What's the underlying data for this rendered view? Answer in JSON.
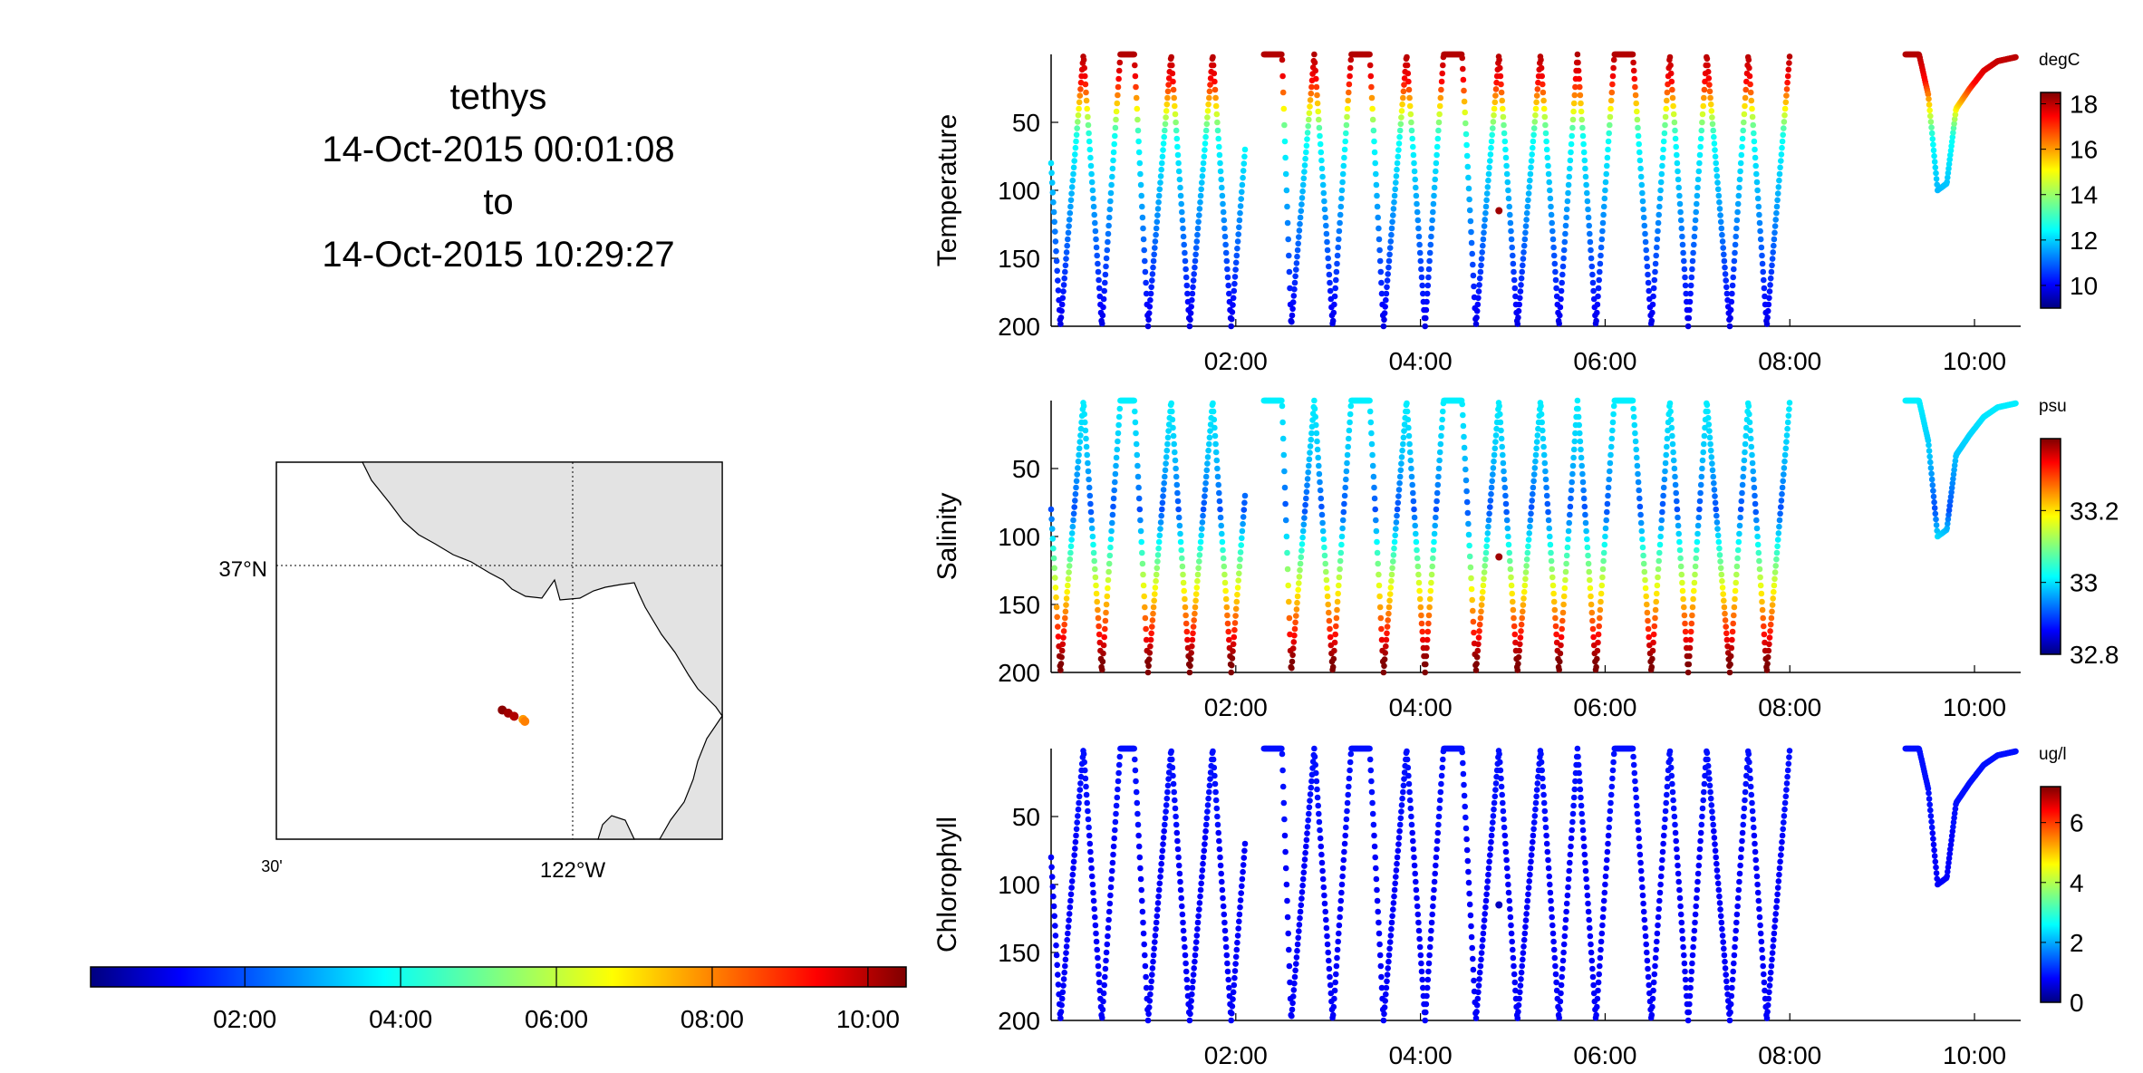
{
  "header": {
    "vehicle": "tethys",
    "start": "14-Oct-2015 00:01:08",
    "separator": "to",
    "end": "14-Oct-2015 10:29:27"
  },
  "map": {
    "lat_label": "37°N",
    "lon_label_left": "30'",
    "lon_label_right": "122°W",
    "track_points": [
      {
        "t": 0.05,
        "lon": -122.12,
        "lat": 36.77,
        "color": "#8b0000"
      },
      {
        "t": 0.3,
        "lon": -122.11,
        "lat": 36.765,
        "color": "#a00000"
      },
      {
        "t": 0.6,
        "lon": -122.1,
        "lat": 36.76,
        "color": "#b00000"
      },
      {
        "t": 0.85,
        "lon": -122.085,
        "lat": 36.755,
        "color": "#ff9900"
      },
      {
        "t": 0.95,
        "lon": -122.082,
        "lat": 36.752,
        "color": "#ff7f00"
      }
    ]
  },
  "time_colorbar": {
    "ticks": [
      "02:00",
      "04:00",
      "06:00",
      "08:00",
      "10:00"
    ],
    "range_hours": [
      0.02,
      10.49
    ]
  },
  "chart_data": [
    {
      "type": "scatter",
      "ylabel": "Temperature",
      "unit": "degC",
      "x_ticks": [
        "02:00",
        "04:00",
        "06:00",
        "08:00",
        "10:00"
      ],
      "y_ticks": [
        50,
        100,
        150,
        200
      ],
      "ylim": [
        0,
        200
      ],
      "y_reversed": true,
      "xlim_hours": [
        0.0,
        10.5
      ],
      "colorbar_ticks": [
        10,
        12,
        14,
        16,
        18
      ],
      "colorbar_range": [
        9,
        18.5
      ],
      "profile": "temperature"
    },
    {
      "type": "scatter",
      "ylabel": "Salinity",
      "unit": "psu",
      "x_ticks": [
        "02:00",
        "04:00",
        "06:00",
        "08:00",
        "10:00"
      ],
      "y_ticks": [
        50,
        100,
        150,
        200
      ],
      "ylim": [
        0,
        200
      ],
      "y_reversed": true,
      "xlim_hours": [
        0.0,
        10.5
      ],
      "colorbar_ticks": [
        32.8,
        33,
        33.2
      ],
      "colorbar_tick_labels": [
        "32.8",
        "33",
        "33.2"
      ],
      "colorbar_range": [
        32.8,
        33.4
      ],
      "profile": "salinity"
    },
    {
      "type": "scatter",
      "ylabel": "Chlorophyll",
      "unit": "ug/l",
      "x_ticks": [
        "02:00",
        "04:00",
        "06:00",
        "08:00",
        "10:00"
      ],
      "y_ticks": [
        50,
        100,
        150,
        200
      ],
      "ylim": [
        0,
        200
      ],
      "y_reversed": true,
      "xlim_hours": [
        0.0,
        10.5
      ],
      "colorbar_ticks": [
        0,
        2,
        4,
        6
      ],
      "colorbar_range": [
        0,
        7.2
      ],
      "profile": "chlorophyll"
    }
  ],
  "profile_track": {
    "segments": [
      {
        "start": 0.0,
        "end": 2.1,
        "vertices": [
          [
            0.0,
            80
          ],
          [
            0.1,
            200
          ],
          [
            0.35,
            0
          ],
          [
            0.55,
            200
          ],
          [
            0.75,
            0
          ],
          [
            0.9,
            0
          ],
          [
            1.05,
            200
          ],
          [
            1.3,
            0
          ],
          [
            1.5,
            200
          ],
          [
            1.75,
            0
          ],
          [
            1.95,
            200
          ],
          [
            2.1,
            70
          ]
        ]
      },
      {
        "start": 2.3,
        "end": 8.05,
        "vertices": [
          [
            2.3,
            0
          ],
          [
            2.5,
            0
          ],
          [
            2.6,
            200
          ],
          [
            2.85,
            0
          ],
          [
            3.05,
            200
          ],
          [
            3.25,
            0
          ],
          [
            3.45,
            0
          ],
          [
            3.6,
            200
          ],
          [
            3.85,
            0
          ],
          [
            4.05,
            200
          ],
          [
            4.25,
            0
          ],
          [
            4.45,
            0
          ],
          [
            4.6,
            200
          ],
          [
            4.85,
            0
          ],
          [
            5.05,
            200
          ],
          [
            5.3,
            0
          ],
          [
            5.5,
            200
          ],
          [
            5.7,
            0
          ],
          [
            5.9,
            200
          ],
          [
            6.1,
            0
          ],
          [
            6.3,
            0
          ],
          [
            6.5,
            200
          ],
          [
            6.7,
            0
          ],
          [
            6.9,
            200
          ],
          [
            7.1,
            0
          ],
          [
            7.35,
            200
          ],
          [
            7.55,
            0
          ],
          [
            7.75,
            200
          ],
          [
            8.0,
            0
          ]
        ]
      },
      {
        "start": 9.25,
        "end": 10.45,
        "vertices": [
          [
            9.25,
            0
          ],
          [
            9.4,
            0
          ],
          [
            9.5,
            30
          ],
          [
            9.6,
            100
          ],
          [
            9.7,
            95
          ],
          [
            9.8,
            40
          ],
          [
            9.95,
            25
          ],
          [
            10.1,
            12
          ],
          [
            10.25,
            5
          ],
          [
            10.45,
            2
          ]
        ]
      }
    ],
    "isolated_points": [
      [
        4.85,
        115
      ]
    ]
  }
}
